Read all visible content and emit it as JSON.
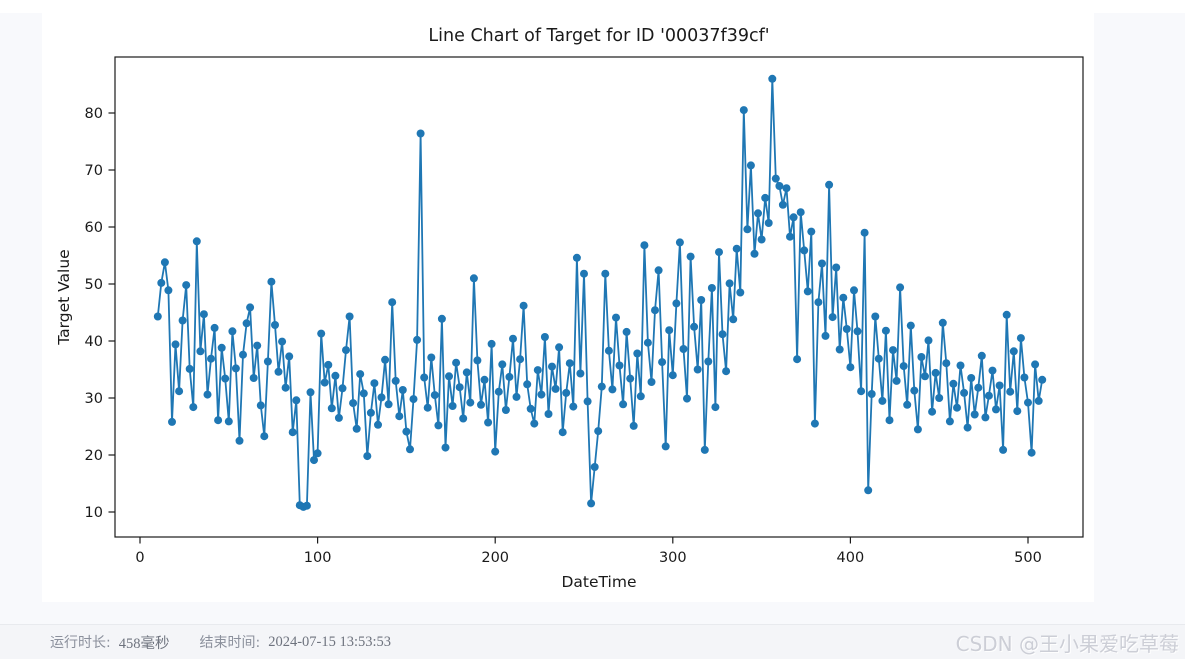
{
  "page": {
    "background": "#f8f9fc"
  },
  "chart_data": {
    "type": "line",
    "title": "Line Chart of Target for ID '00037f39cf'",
    "xlabel": "DateTime",
    "ylabel": "Target Value",
    "x_ticks": [
      0,
      100,
      200,
      300,
      400,
      500
    ],
    "y_ticks": [
      10,
      20,
      30,
      40,
      50,
      60,
      70,
      80
    ],
    "xlim": [
      -14,
      531
    ],
    "ylim": [
      5.6,
      89.8
    ],
    "grid": false,
    "legend_position": "none",
    "line_color": "#1f77b4",
    "marker": "circle",
    "x_start": 10,
    "x_step": 2,
    "values": [
      44.3,
      50.2,
      53.8,
      48.9,
      25.8,
      39.4,
      31.2,
      43.6,
      49.8,
      35.1,
      28.4,
      57.5,
      38.2,
      44.7,
      30.6,
      36.9,
      42.3,
      26.1,
      38.8,
      33.4,
      25.9,
      41.7,
      35.2,
      22.5,
      37.6,
      43.1,
      45.9,
      33.5,
      39.2,
      28.7,
      23.3,
      36.4,
      50.4,
      42.8,
      34.6,
      39.9,
      31.8,
      37.3,
      24.0,
      29.6,
      11.2,
      10.9,
      11.1,
      31.0,
      19.1,
      20.3,
      41.3,
      32.7,
      35.8,
      28.2,
      33.9,
      26.5,
      31.7,
      38.4,
      44.3,
      29.1,
      24.6,
      34.2,
      30.8,
      19.8,
      27.4,
      32.6,
      25.3,
      30.1,
      36.7,
      28.9,
      46.8,
      33.0,
      26.8,
      31.4,
      24.1,
      21.0,
      29.8,
      40.2,
      76.4,
      33.6,
      28.3,
      37.1,
      30.5,
      25.2,
      43.9,
      21.3,
      33.8,
      28.6,
      36.2,
      31.9,
      26.4,
      34.5,
      29.2,
      51.0,
      36.6,
      28.8,
      33.2,
      25.7,
      39.5,
      20.6,
      31.1,
      35.9,
      27.9,
      33.7,
      40.4,
      30.2,
      36.8,
      46.2,
      32.4,
      28.1,
      25.5,
      34.9,
      30.6,
      40.7,
      27.2,
      35.5,
      31.6,
      38.9,
      24.0,
      30.9,
      36.1,
      28.5,
      54.6,
      34.3,
      51.8,
      29.4,
      11.5,
      17.9,
      24.2,
      32.0,
      51.8,
      38.3,
      31.5,
      44.1,
      35.7,
      28.9,
      41.6,
      33.4,
      25.1,
      37.8,
      30.3,
      56.8,
      39.7,
      32.8,
      45.4,
      52.4,
      36.3,
      21.5,
      41.9,
      34.0,
      46.6,
      57.3,
      38.6,
      29.9,
      54.8,
      42.5,
      35.0,
      47.2,
      20.9,
      36.4,
      49.3,
      28.4,
      55.6,
      41.2,
      34.7,
      50.1,
      43.8,
      56.2,
      48.5,
      80.5,
      59.6,
      70.8,
      55.3,
      62.4,
      57.8,
      65.1,
      60.7,
      86.0,
      68.5,
      67.2,
      63.9,
      66.8,
      58.3,
      61.7,
      36.8,
      62.6,
      55.9,
      48.7,
      59.2,
      25.5,
      46.8,
      53.6,
      40.9,
      67.4,
      44.2,
      52.9,
      38.5,
      47.6,
      42.1,
      35.4,
      48.9,
      41.7,
      31.2,
      59.0,
      13.8,
      30.7,
      44.3,
      36.9,
      29.5,
      41.8,
      26.1,
      38.4,
      33.0,
      49.4,
      35.6,
      28.8,
      42.7,
      31.3,
      24.5,
      37.2,
      33.8,
      40.1,
      27.6,
      34.4,
      30.0,
      43.2,
      36.1,
      25.9,
      32.5,
      28.3,
      35.7,
      30.9,
      24.8,
      33.5,
      27.1,
      31.8,
      37.4,
      26.6,
      30.4,
      34.8,
      28.0,
      32.2,
      20.9,
      44.6,
      31.1,
      38.2,
      27.7,
      40.5,
      33.6,
      29.2,
      20.4,
      35.9,
      29.5,
      33.2
    ]
  },
  "footer": {
    "runtime_label": "运行时长:",
    "runtime_value": "458毫秒",
    "endtime_label": "结束时间:",
    "endtime_value": "2024-07-15 13:53:53",
    "watermark": "CSDN @王小果爱吃草莓"
  }
}
